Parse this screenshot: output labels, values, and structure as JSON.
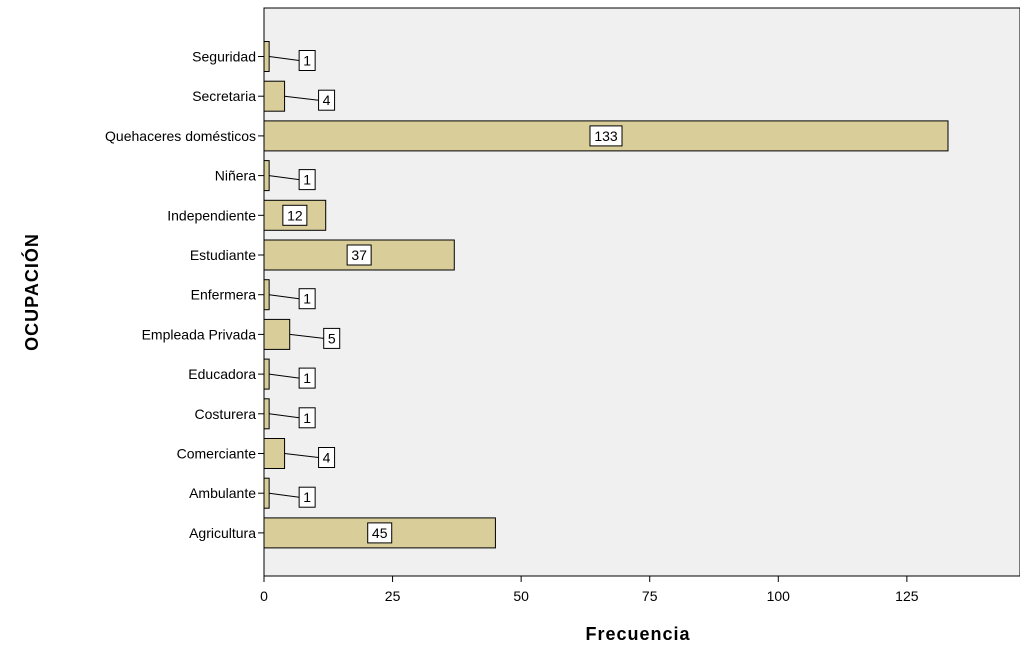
{
  "chart_data": {
    "type": "bar",
    "orientation": "horizontal",
    "categories": [
      "Seguridad",
      "Secretaria",
      "Quehaceres domésticos",
      "Niñera",
      "Independiente",
      "Estudiante",
      "Enfermera",
      "Empleada Privada",
      "Educadora",
      "Costurera",
      "Comerciante",
      "Ambulante",
      "Agricultura"
    ],
    "values": [
      1,
      4,
      133,
      1,
      12,
      37,
      1,
      5,
      1,
      1,
      4,
      1,
      45
    ],
    "value_labels": [
      "1",
      "4",
      "133",
      "1",
      "12",
      "37",
      "1",
      "5",
      "1",
      "1",
      "4",
      "1",
      "45"
    ],
    "xlabel": "Frecuencia",
    "ylabel": "OCUPACIÓN",
    "xlim": [
      0,
      147
    ],
    "xticks": [
      0,
      25,
      50,
      75,
      100,
      125
    ],
    "xtick_labels": [
      "0",
      "25",
      "50",
      "75",
      "100",
      "125"
    ],
    "grid": false,
    "legend": "none"
  },
  "colors": {
    "bar_fill": "#d9cd9a",
    "bar_stroke": "#000000",
    "plot_background": "#f0f0f0",
    "label_box_fill": "#ffffff"
  }
}
